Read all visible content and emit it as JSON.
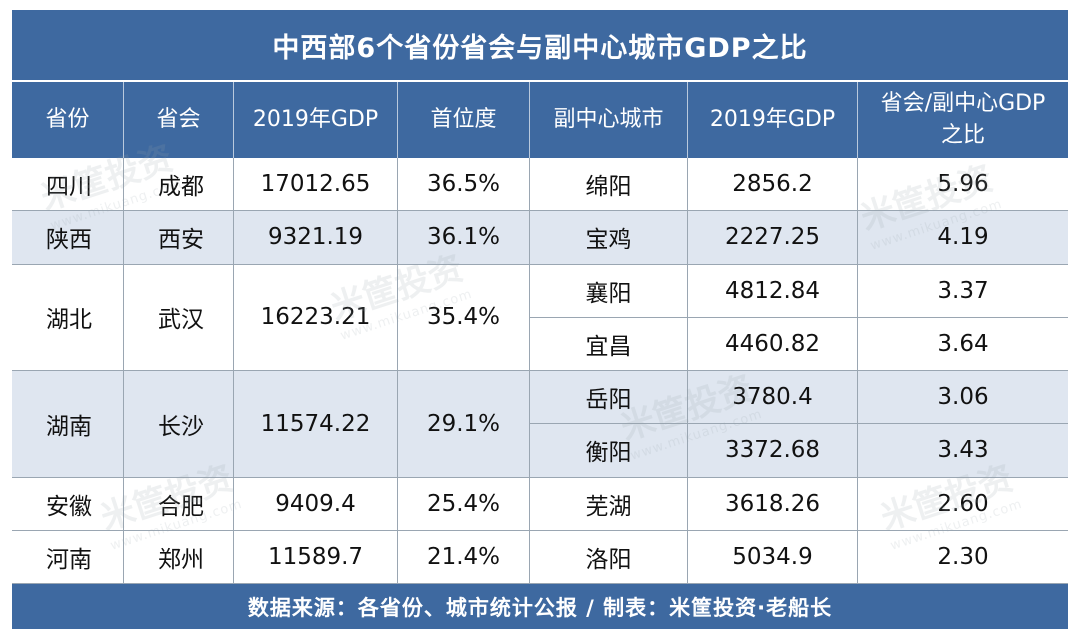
{
  "title": "中西部6个省份省会与副中心城市GDP之比",
  "headers": [
    "省份",
    "省会",
    "2019年GDP",
    "首位度",
    "副中心城市",
    "2019年GDP",
    "省会/副中心GDP之比"
  ],
  "header_last_line1": "省会/副中心GDP",
  "header_last_line2": "之比",
  "provinces": [
    {
      "province": "四川",
      "capital": "成都",
      "gdp": "17012.65",
      "primacy": "36.5%",
      "shaded": false,
      "subs": [
        {
          "city": "绵阳",
          "gdp": "2856.2",
          "ratio": "5.96"
        }
      ]
    },
    {
      "province": "陕西",
      "capital": "西安",
      "gdp": "9321.19",
      "primacy": "36.1%",
      "shaded": true,
      "subs": [
        {
          "city": "宝鸡",
          "gdp": "2227.25",
          "ratio": "4.19"
        }
      ]
    },
    {
      "province": "湖北",
      "capital": "武汉",
      "gdp": "16223.21",
      "primacy": "35.4%",
      "shaded": false,
      "subs": [
        {
          "city": "襄阳",
          "gdp": "4812.84",
          "ratio": "3.37"
        },
        {
          "city": "宜昌",
          "gdp": "4460.82",
          "ratio": "3.64"
        }
      ]
    },
    {
      "province": "湖南",
      "capital": "长沙",
      "gdp": "11574.22",
      "primacy": "29.1%",
      "shaded": true,
      "subs": [
        {
          "city": "岳阳",
          "gdp": "3780.4",
          "ratio": "3.06"
        },
        {
          "city": "衡阳",
          "gdp": "3372.68",
          "ratio": "3.43"
        }
      ]
    },
    {
      "province": "安徽",
      "capital": "合肥",
      "gdp": "9409.4",
      "primacy": "25.4%",
      "shaded": false,
      "subs": [
        {
          "city": "芜湖",
          "gdp": "3618.26",
          "ratio": "2.60"
        }
      ]
    },
    {
      "province": "河南",
      "capital": "郑州",
      "gdp": "11589.7",
      "primacy": "21.4%",
      "shaded": false,
      "subs": [
        {
          "city": "洛阳",
          "gdp": "5034.9",
          "ratio": "2.30"
        }
      ]
    }
  ],
  "footer": "数据来源：各省份、城市统计公报 / 制表：米筐投资·老船长",
  "watermark_text": "米筐投资",
  "watermark_url": "www.mikuang.com",
  "colors": {
    "header_bg": "#3e69a0",
    "shade": "#dfe6f0",
    "text": "#111111"
  }
}
